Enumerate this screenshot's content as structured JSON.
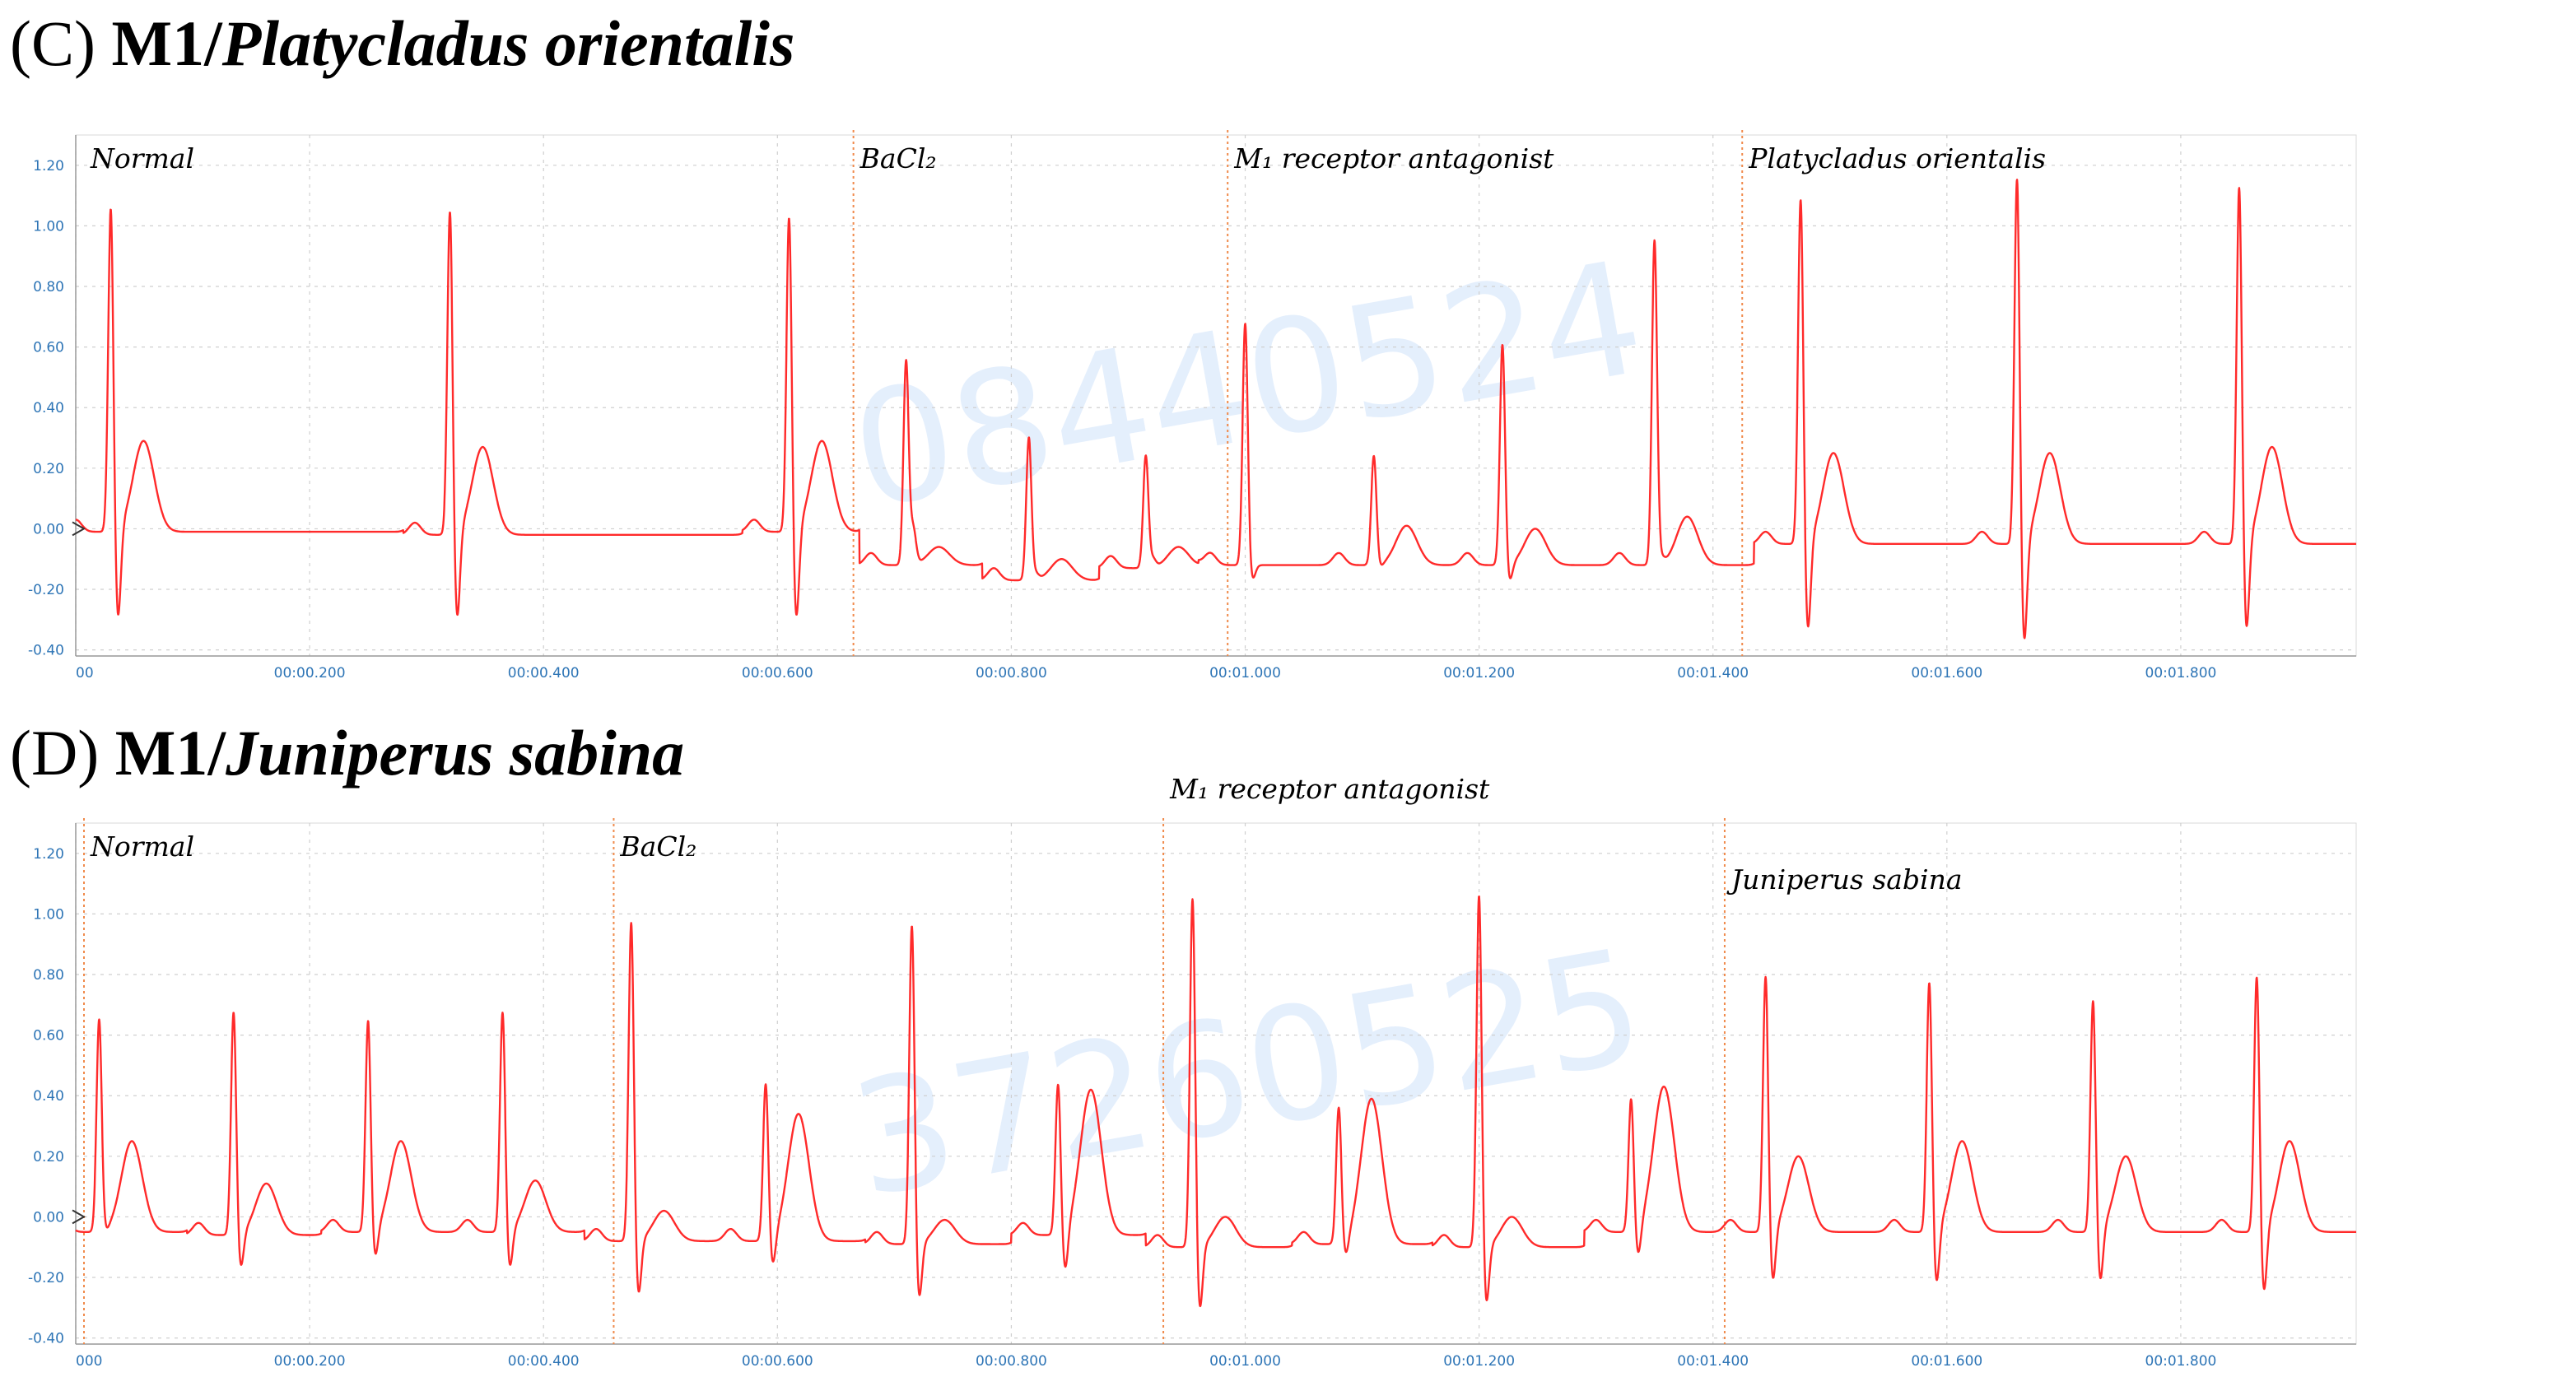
{
  "panels": [
    {
      "label": "(C)",
      "model": "M1/",
      "species": "Platycladus orientalis",
      "watermark": "08440524",
      "chart_data": {
        "type": "line",
        "xlabel": "",
        "ylabel": "",
        "xlim": [
          0,
          1.95
        ],
        "ylim": [
          -0.42,
          1.3
        ],
        "grid": true,
        "series_color": "#ff2a2a",
        "xticks": [
          {
            "v": 0.0,
            "label": "00"
          },
          {
            "v": 0.2,
            "label": "00:00.200"
          },
          {
            "v": 0.4,
            "label": "00:00.400"
          },
          {
            "v": 0.6,
            "label": "00:00.600"
          },
          {
            "v": 0.8,
            "label": "00:00.800"
          },
          {
            "v": 1.0,
            "label": "00:01.000"
          },
          {
            "v": 1.2,
            "label": "00:01.200"
          },
          {
            "v": 1.4,
            "label": "00:01.400"
          },
          {
            "v": 1.6,
            "label": "00:01.600"
          },
          {
            "v": 1.8,
            "label": "00:01.800"
          }
        ],
        "yticks": [
          {
            "v": 1.2,
            "label": "1.20"
          },
          {
            "v": 1.0,
            "label": "1.00"
          },
          {
            "v": 0.8,
            "label": "0.80"
          },
          {
            "v": 0.6,
            "label": "0.60"
          },
          {
            "v": 0.4,
            "label": "0.40"
          },
          {
            "v": 0.2,
            "label": "0.20"
          },
          {
            "v": 0.0,
            "label": "0.00"
          },
          {
            "v": -0.2,
            "label": "-0.20"
          },
          {
            "v": -0.4,
            "label": "-0.40"
          }
        ],
        "annotations": [
          {
            "x": 0.0,
            "text": "Normal",
            "line": false
          },
          {
            "x": 0.665,
            "text": "BaCl₂",
            "line": true
          },
          {
            "x": 0.985,
            "text": "M₁ receptor antagonist",
            "line": true
          },
          {
            "x": 1.425,
            "text": "Platycladus orientalis",
            "line": true
          }
        ],
        "ecg_events": [
          {
            "t": 0.03,
            "r": 1.08,
            "q": -0.32,
            "tw": 0.3,
            "base": -0.01
          },
          {
            "t": 0.32,
            "r": 1.08,
            "q": -0.32,
            "tw": 0.29,
            "base": -0.02
          },
          {
            "t": 0.61,
            "r": 1.05,
            "q": -0.32,
            "tw": 0.3,
            "base": -0.01
          },
          {
            "t": 0.71,
            "r": 0.67,
            "q": 0.0,
            "tw": 0.06,
            "base": -0.12
          },
          {
            "t": 0.815,
            "r": 0.47,
            "q": -0.15,
            "tw": 0.07,
            "base": -0.17
          },
          {
            "t": 0.915,
            "r": 0.37,
            "q": -0.1,
            "tw": 0.07,
            "base": -0.13
          },
          {
            "t": 1.0,
            "r": 0.8,
            "q": -0.17,
            "tw": 0.0,
            "base": -0.12
          },
          {
            "t": 1.11,
            "r": 0.36,
            "q": -0.13,
            "tw": 0.13,
            "base": -0.12
          },
          {
            "t": 1.22,
            "r": 0.73,
            "q": -0.18,
            "tw": 0.12,
            "base": -0.12
          },
          {
            "t": 1.35,
            "r": 1.07,
            "q": -0.1,
            "tw": 0.16,
            "base": -0.12
          },
          {
            "t": 1.475,
            "r": 1.15,
            "q": -0.36,
            "tw": 0.3,
            "base": -0.05
          },
          {
            "t": 1.66,
            "r": 1.22,
            "q": -0.4,
            "tw": 0.3,
            "base": -0.05
          },
          {
            "t": 1.85,
            "r": 1.19,
            "q": -0.36,
            "tw": 0.32,
            "base": -0.05
          }
        ]
      }
    },
    {
      "label": "(D)",
      "model": "M1/",
      "species": "Juniperus sabina",
      "watermark": "37260525",
      "chart_data": {
        "type": "line",
        "xlabel": "",
        "ylabel": "",
        "xlim": [
          0,
          1.95
        ],
        "ylim": [
          -0.42,
          1.3
        ],
        "grid": true,
        "series_color": "#ff2a2a",
        "xticks": [
          {
            "v": 0.0,
            "label": "000"
          },
          {
            "v": 0.2,
            "label": "00:00.200"
          },
          {
            "v": 0.4,
            "label": "00:00.400"
          },
          {
            "v": 0.6,
            "label": "00:00.600"
          },
          {
            "v": 0.8,
            "label": "00:00.800"
          },
          {
            "v": 1.0,
            "label": "00:01.000"
          },
          {
            "v": 1.2,
            "label": "00:01.200"
          },
          {
            "v": 1.4,
            "label": "00:01.400"
          },
          {
            "v": 1.6,
            "label": "00:01.600"
          },
          {
            "v": 1.8,
            "label": "00:01.800"
          }
        ],
        "yticks": [
          {
            "v": 1.2,
            "label": "1.20"
          },
          {
            "v": 1.0,
            "label": "1.00"
          },
          {
            "v": 0.8,
            "label": "0.80"
          },
          {
            "v": 0.6,
            "label": "0.60"
          },
          {
            "v": 0.4,
            "label": "0.40"
          },
          {
            "v": 0.2,
            "label": "0.20"
          },
          {
            "v": 0.0,
            "label": "0.00"
          },
          {
            "v": -0.2,
            "label": "-0.20"
          },
          {
            "v": -0.4,
            "label": "-0.40"
          }
        ],
        "annotations": [
          {
            "x": 0.0,
            "text": "Normal",
            "line": true
          },
          {
            "x": 0.46,
            "text": "BaCl₂",
            "line": true
          },
          {
            "x": 0.93,
            "text": "M₁ receptor antagonist",
            "line": true
          },
          {
            "x": 1.41,
            "text": "Juniperus sabina",
            "line": true
          }
        ],
        "ecg_events": [
          {
            "t": 0.02,
            "r": 0.7,
            "q": -0.06,
            "tw": 0.3,
            "base": -0.05
          },
          {
            "t": 0.135,
            "r": 0.74,
            "q": -0.18,
            "tw": 0.17,
            "base": -0.06
          },
          {
            "t": 0.25,
            "r": 0.7,
            "q": -0.15,
            "tw": 0.3,
            "base": -0.05
          },
          {
            "t": 0.365,
            "r": 0.73,
            "q": -0.18,
            "tw": 0.17,
            "base": -0.05
          },
          {
            "t": 0.475,
            "r": 1.06,
            "q": -0.27,
            "tw": 0.1,
            "base": -0.08
          },
          {
            "t": 0.59,
            "r": 0.52,
            "q": -0.18,
            "tw": 0.42,
            "base": -0.08
          },
          {
            "t": 0.715,
            "r": 1.06,
            "q": -0.28,
            "tw": 0.08,
            "base": -0.09
          },
          {
            "t": 0.84,
            "r": 0.5,
            "q": -0.2,
            "tw": 0.48,
            "base": -0.06
          },
          {
            "t": 0.955,
            "r": 1.16,
            "q": -0.32,
            "tw": 0.1,
            "base": -0.1
          },
          {
            "t": 1.08,
            "r": 0.45,
            "q": -0.15,
            "tw": 0.48,
            "base": -0.09
          },
          {
            "t": 1.2,
            "r": 1.17,
            "q": -0.3,
            "tw": 0.1,
            "base": -0.1
          },
          {
            "t": 1.33,
            "r": 0.44,
            "q": -0.15,
            "tw": 0.48,
            "base": -0.05
          },
          {
            "t": 1.445,
            "r": 0.85,
            "q": -0.23,
            "tw": 0.25,
            "base": -0.05
          },
          {
            "t": 1.585,
            "r": 0.83,
            "q": -0.24,
            "tw": 0.3,
            "base": -0.05
          },
          {
            "t": 1.725,
            "r": 0.77,
            "q": -0.23,
            "tw": 0.25,
            "base": -0.05
          },
          {
            "t": 1.865,
            "r": 0.85,
            "q": -0.27,
            "tw": 0.3,
            "base": -0.05
          }
        ]
      }
    }
  ]
}
